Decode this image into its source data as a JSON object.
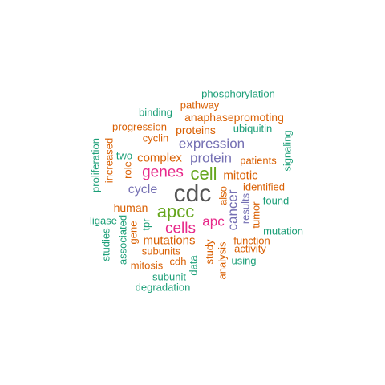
{
  "palette": {
    "teal": "#1b9e77",
    "orange": "#d95f02",
    "purple": "#7570b3",
    "magenta": "#e7298a",
    "green": "#66a61e",
    "gray": "#555555"
  },
  "words": [
    {
      "text": "cdc",
      "color": "gray"
    },
    {
      "text": "cell",
      "color": "green"
    },
    {
      "text": "apcc",
      "color": "green"
    },
    {
      "text": "genes",
      "color": "magenta"
    },
    {
      "text": "cells",
      "color": "magenta"
    },
    {
      "text": "expression",
      "color": "purple"
    },
    {
      "text": "protein",
      "color": "purple"
    },
    {
      "text": "cycle",
      "color": "purple"
    },
    {
      "text": "apc",
      "color": "magenta"
    },
    {
      "text": "cancer",
      "color": "purple"
    },
    {
      "text": "mutations",
      "color": "orange"
    },
    {
      "text": "complex",
      "color": "orange"
    },
    {
      "text": "mitotic",
      "color": "orange"
    },
    {
      "text": "human",
      "color": "orange"
    },
    {
      "text": "phosphorylation",
      "color": "teal"
    },
    {
      "text": "pathway",
      "color": "orange"
    },
    {
      "text": "binding",
      "color": "teal"
    },
    {
      "text": "anaphasepromoting",
      "color": "orange"
    },
    {
      "text": "progression",
      "color": "orange"
    },
    {
      "text": "proteins",
      "color": "orange"
    },
    {
      "text": "ubiquitin",
      "color": "teal"
    },
    {
      "text": "cyclin",
      "color": "orange"
    },
    {
      "text": "signaling",
      "color": "teal"
    },
    {
      "text": "two",
      "color": "teal"
    },
    {
      "text": "patients",
      "color": "orange"
    },
    {
      "text": "increased",
      "color": "orange"
    },
    {
      "text": "proliferation",
      "color": "teal"
    },
    {
      "text": "role",
      "color": "orange"
    },
    {
      "text": "identified",
      "color": "orange"
    },
    {
      "text": "also",
      "color": "orange"
    },
    {
      "text": "results",
      "color": "purple"
    },
    {
      "text": "tumor",
      "color": "orange"
    },
    {
      "text": "found",
      "color": "teal"
    },
    {
      "text": "ligase",
      "color": "teal"
    },
    {
      "text": "tpr",
      "color": "teal"
    },
    {
      "text": "gene",
      "color": "orange"
    },
    {
      "text": "associated",
      "color": "teal"
    },
    {
      "text": "studies",
      "color": "teal"
    },
    {
      "text": "mutation",
      "color": "teal"
    },
    {
      "text": "function",
      "color": "orange"
    },
    {
      "text": "subunits",
      "color": "orange"
    },
    {
      "text": "study",
      "color": "orange"
    },
    {
      "text": "activity",
      "color": "orange"
    },
    {
      "text": "mitosis",
      "color": "orange"
    },
    {
      "text": "cdh",
      "color": "orange"
    },
    {
      "text": "data",
      "color": "teal"
    },
    {
      "text": "analysis",
      "color": "orange"
    },
    {
      "text": "using",
      "color": "teal"
    },
    {
      "text": "subunit",
      "color": "teal"
    },
    {
      "text": "degradation",
      "color": "teal"
    }
  ]
}
